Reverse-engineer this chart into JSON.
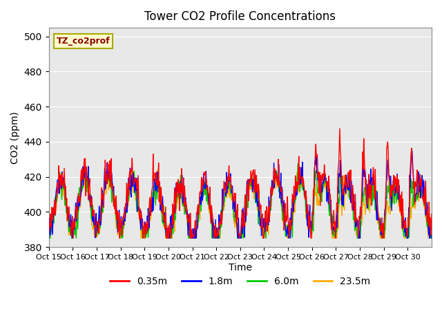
{
  "title": "Tower CO2 Profile Concentrations",
  "ylabel": "CO2 (ppm)",
  "xlabel": "Time",
  "tag_label": "TZ_co2prof",
  "ylim": [
    380,
    505
  ],
  "yticks": [
    380,
    400,
    420,
    440,
    460,
    480,
    500
  ],
  "xtick_labels": [
    "Oct 15",
    "Oct 16",
    "Oct 17",
    "Oct 18",
    "Oct 19",
    "Oct 20",
    "Oct 21",
    "Oct 22",
    "Oct 23",
    "Oct 24",
    "Oct 25",
    "Oct 26",
    "Oct 27",
    "Oct 28",
    "Oct 29",
    "Oct 30"
  ],
  "colors": {
    "0.35m": "#ff0000",
    "1.8m": "#0000ff",
    "6.0m": "#00cc00",
    "23.5m": "#ffaa00"
  },
  "legend_labels": [
    "0.35m",
    "1.8m",
    "6.0m",
    "23.5m"
  ],
  "bg_color": "#e8e8e8",
  "fig_bg": "#ffffff",
  "linewidth": 1.0,
  "n_points_per_day": 48,
  "n_days": 16,
  "seed": 42,
  "base_co2": 400,
  "daily_amplitude": 15,
  "noise_scale": 3,
  "late_spike_days": [
    11,
    12,
    13,
    14,
    15
  ],
  "late_spike_amplitude": 40,
  "offsets": {
    "0.35m": 5,
    "1.8m": 3,
    "6.0m": 1,
    "23.5m": 0
  }
}
